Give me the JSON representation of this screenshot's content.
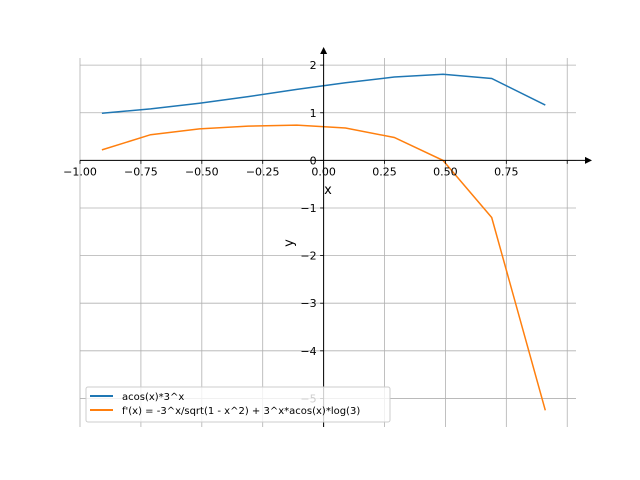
{
  "chart_data": {
    "type": "line",
    "title": "",
    "xlabel": "x",
    "ylabel": "y",
    "xlim": [
      -1.0,
      1.036
    ],
    "ylim": [
      -5.6,
      2.15
    ],
    "grid": true,
    "legend_placement": "lower-left",
    "x_ticks": [
      -1.0,
      -0.75,
      -0.5,
      -0.25,
      0.0,
      0.25,
      0.5,
      0.75,
      1.0
    ],
    "x_tick_labels": [
      "−1.00",
      "−0.75",
      "−0.50",
      "−0.25",
      "0.00",
      "0.25",
      "0.50",
      "0.75",
      ""
    ],
    "y_ticks": [
      2,
      1,
      0,
      -1,
      -2,
      -3,
      -4,
      -5
    ],
    "y_tick_labels": [
      "2",
      "1",
      "0",
      "−1",
      "−2",
      "−3",
      "−4",
      "−5"
    ],
    "x": [
      -0.91,
      -0.71,
      -0.51,
      -0.31,
      -0.11,
      0.09,
      0.29,
      0.49,
      0.69,
      0.91
    ],
    "series": [
      {
        "name": "acos(x)*3^x",
        "color": "#1f77b4",
        "values": [
          0.99,
          1.08,
          1.2,
          1.34,
          1.49,
          1.63,
          1.75,
          1.81,
          1.72,
          1.16
        ]
      },
      {
        "name": "f'(x) = -3^x/sqrt(1 - x^2) + 3^x*acos(x)*log(3)",
        "color": "#ff7f0e",
        "values": [
          0.22,
          0.54,
          0.66,
          0.72,
          0.74,
          0.68,
          0.48,
          0.0,
          -1.2,
          -5.25
        ]
      }
    ]
  }
}
